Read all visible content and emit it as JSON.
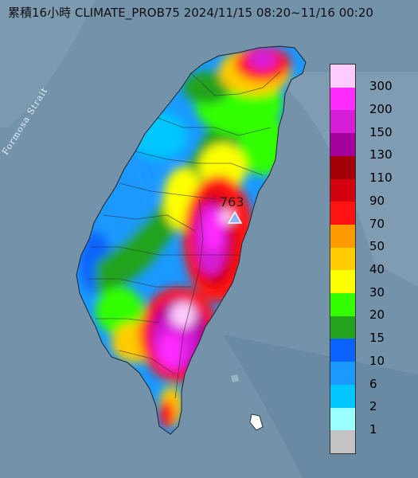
{
  "title": "累積16小時 CLIMATE_PROB75 2024/11/15 08:20~11/16 00:20",
  "sea_label": "Formosa Strait",
  "max_label": "763",
  "legend": {
    "items": [
      {
        "label": "300",
        "color": "#ffcafd"
      },
      {
        "label": "200",
        "color": "#ff2cff"
      },
      {
        "label": "150",
        "color": "#d61ed8"
      },
      {
        "label": "130",
        "color": "#a5009c"
      },
      {
        "label": "110",
        "color": "#a4000a"
      },
      {
        "label": "90",
        "color": "#d3000d"
      },
      {
        "label": "70",
        "color": "#ff1212"
      },
      {
        "label": "50",
        "color": "#ff9a00"
      },
      {
        "label": "40",
        "color": "#ffcc00"
      },
      {
        "label": "30",
        "color": "#fcff00"
      },
      {
        "label": "20",
        "color": "#33ff00"
      },
      {
        "label": "15",
        "color": "#24a31c"
      },
      {
        "label": "10",
        "color": "#0b63ff"
      },
      {
        "label": "6",
        "color": "#1a99ff"
      },
      {
        "label": "2",
        "color": "#00c6ff"
      },
      {
        "label": "1",
        "color": "#99ffff"
      },
      {
        "label": "",
        "color": "#c3c3c3"
      }
    ]
  }
}
